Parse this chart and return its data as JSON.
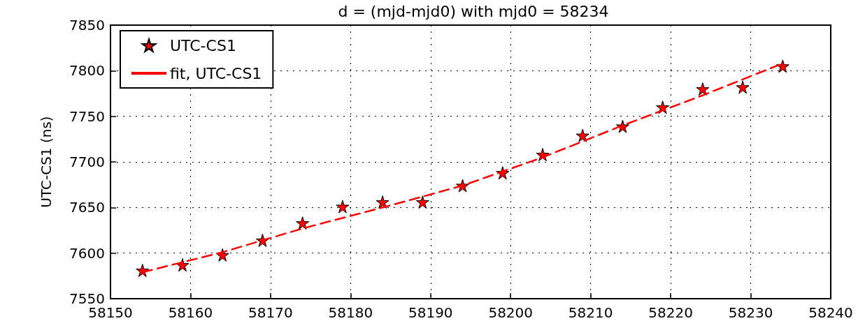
{
  "chart_data": {
    "type": "scatter",
    "title": "d = (mjd-mjd0) with mjd0 = 58234",
    "ylabel": "UTC-CS1 (ns)",
    "xlim": [
      58150,
      58240
    ],
    "xticks": [
      58150,
      58160,
      58170,
      58180,
      58190,
      58200,
      58210,
      58220,
      58230,
      58240
    ],
    "ylim": [
      7550,
      7850
    ],
    "yticks": [
      7550,
      7600,
      7650,
      7700,
      7750,
      7800,
      7850
    ],
    "grid": true,
    "legend": "top left",
    "series": [
      {
        "name": "UTC-CS1",
        "marker": "star",
        "color": "#ff0000",
        "x": [
          58154,
          58159,
          58164,
          58169,
          58174,
          58179,
          58184,
          58189,
          58194,
          58199,
          58204,
          58209,
          58214,
          58219,
          58224,
          58229,
          58234
        ],
        "values": [
          7581,
          7587,
          7598,
          7614,
          7633,
          7651,
          7656,
          7656,
          7674,
          7688,
          7708,
          7729,
          7739,
          7760,
          7780,
          7782,
          7805
        ]
      },
      {
        "name": "fit, UTC-CS1",
        "type": "line",
        "line_style": "dashed",
        "color": "#ff0000",
        "x": [
          58154,
          58164,
          58174,
          58184,
          58194,
          58204,
          58214,
          58224,
          58234
        ],
        "values": [
          7579,
          7601,
          7627,
          7650,
          7674,
          7705,
          7740,
          7773,
          7808
        ]
      }
    ]
  }
}
